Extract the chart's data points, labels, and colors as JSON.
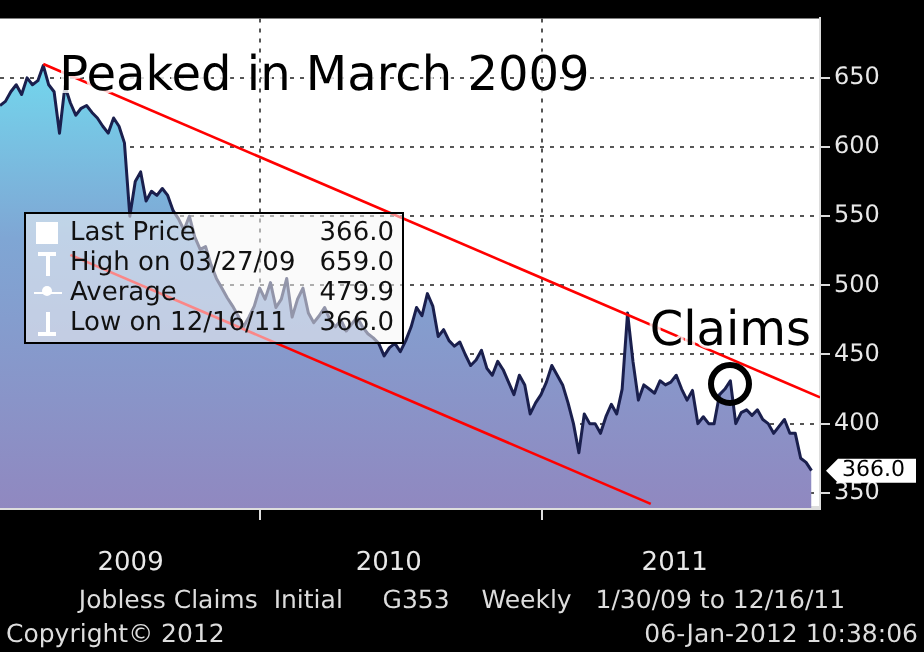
{
  "chart_data": {
    "type": "area",
    "annotations": [
      {
        "text": "Peaked in March 2009",
        "x": "2009-03-27",
        "y": 659
      },
      {
        "text": "Claims",
        "x": "2011-09-02",
        "y": 431
      },
      "Last Price 366.0",
      "High on 03/27/09 659.0",
      "Average 479.9",
      "Low on 12/16/11 366.0",
      "Jobless Claims  Initial     G353    Weekly   1/30/09 to 12/16/11",
      "Copyright© 2012",
      "06-Jan-2012 10:38:06"
    ],
    "xlim": [
      "2009-01-30",
      "2011-12-27"
    ],
    "xticks": [
      {
        "value": "2009-07-18",
        "label": "2009"
      },
      {
        "value": "2010-01-01",
        "label": null
      },
      {
        "value": "2010-06-17",
        "label": "2010"
      },
      {
        "value": "2011-01-01",
        "label": null
      },
      {
        "value": "2011-06-22",
        "label": "2011"
      }
    ],
    "ylim": [
      339,
      693
    ],
    "yticks": [
      350,
      400,
      450,
      500,
      550,
      600,
      650
    ],
    "grid": true,
    "series": [
      {
        "color": "#1a1f4d",
        "x": [
          "2009-01-30",
          "2009-02-06",
          "2009-02-13",
          "2009-02-20",
          "2009-02-27",
          "2009-03-06",
          "2009-03-13",
          "2009-03-20",
          "2009-03-27",
          "2009-04-03",
          "2009-04-10",
          "2009-04-17",
          "2009-04-24",
          "2009-05-01",
          "2009-05-08",
          "2009-05-15",
          "2009-05-22",
          "2009-05-29",
          "2009-06-05",
          "2009-06-12",
          "2009-06-19",
          "2009-06-26",
          "2009-07-03",
          "2009-07-10",
          "2009-07-17",
          "2009-07-24",
          "2009-07-31",
          "2009-08-07",
          "2009-08-14",
          "2009-08-21",
          "2009-08-28",
          "2009-09-04",
          "2009-09-11",
          "2009-09-18",
          "2009-09-25",
          "2009-10-02",
          "2009-10-09",
          "2009-10-16",
          "2009-10-23",
          "2009-10-30",
          "2009-11-06",
          "2009-11-13",
          "2009-11-20",
          "2009-11-27",
          "2009-12-04",
          "2009-12-11",
          "2009-12-18",
          "2009-12-25",
          "2010-01-01",
          "2010-01-08",
          "2010-01-15",
          "2010-01-22",
          "2010-01-29",
          "2010-02-05",
          "2010-02-12",
          "2010-02-19",
          "2010-02-26",
          "2010-03-05",
          "2010-03-12",
          "2010-03-19",
          "2010-03-26",
          "2010-04-02",
          "2010-04-09",
          "2010-04-16",
          "2010-04-23",
          "2010-04-30",
          "2010-05-07",
          "2010-05-14",
          "2010-05-21",
          "2010-05-28",
          "2010-06-04",
          "2010-06-11",
          "2010-06-18",
          "2010-06-25",
          "2010-07-02",
          "2010-07-09",
          "2010-07-16",
          "2010-07-23",
          "2010-07-30",
          "2010-08-06",
          "2010-08-13",
          "2010-08-20",
          "2010-08-27",
          "2010-09-03",
          "2010-09-10",
          "2010-09-17",
          "2010-09-24",
          "2010-10-01",
          "2010-10-08",
          "2010-10-15",
          "2010-10-22",
          "2010-10-29",
          "2010-11-05",
          "2010-11-12",
          "2010-11-19",
          "2010-11-26",
          "2010-12-03",
          "2010-12-10",
          "2010-12-17",
          "2010-12-24",
          "2010-12-31",
          "2011-01-07",
          "2011-01-14",
          "2011-01-21",
          "2011-01-28",
          "2011-02-04",
          "2011-02-11",
          "2011-02-18",
          "2011-02-25",
          "2011-03-04",
          "2011-03-11",
          "2011-03-18",
          "2011-03-25",
          "2011-04-01",
          "2011-04-08",
          "2011-04-15",
          "2011-04-22",
          "2011-04-29",
          "2011-05-06",
          "2011-05-13",
          "2011-05-20",
          "2011-05-27",
          "2011-06-03",
          "2011-06-10",
          "2011-06-17",
          "2011-06-24",
          "2011-07-01",
          "2011-07-08",
          "2011-07-15",
          "2011-07-22",
          "2011-07-29",
          "2011-08-05",
          "2011-08-12",
          "2011-08-19",
          "2011-08-26",
          "2011-09-02",
          "2011-09-09",
          "2011-09-16",
          "2011-09-23",
          "2011-09-30",
          "2011-10-07",
          "2011-10-14",
          "2011-10-21",
          "2011-10-28",
          "2011-11-04",
          "2011-11-11",
          "2011-11-18",
          "2011-11-25",
          "2011-12-02",
          "2011-12-09",
          "2011-12-16"
        ],
        "values": [
          630,
          633,
          640,
          645,
          638,
          650,
          645,
          648,
          659,
          645,
          640,
          610,
          644,
          632,
          623,
          628,
          630,
          625,
          621,
          615,
          610,
          621,
          615,
          603,
          550,
          575,
          582,
          561,
          568,
          565,
          570,
          565,
          554,
          548,
          540,
          550,
          535,
          526,
          528,
          515,
          505,
          498,
          491,
          485,
          478,
          470,
          477,
          485,
          498,
          490,
          502,
          484,
          490,
          505,
          477,
          490,
          498,
          480,
          473,
          478,
          484,
          475,
          470,
          475,
          467,
          472,
          477,
          470,
          465,
          462,
          458,
          449,
          455,
          458,
          452,
          460,
          470,
          484,
          478,
          494,
          485,
          463,
          468,
          460,
          456,
          459,
          450,
          442,
          446,
          453,
          440,
          435,
          445,
          439,
          430,
          421,
          435,
          428,
          407,
          415,
          421,
          430,
          442,
          435,
          428,
          415,
          400,
          379,
          407,
          400,
          400,
          393,
          405,
          414,
          407,
          425,
          480,
          445,
          417,
          428,
          425,
          422,
          431,
          428,
          430,
          435,
          425,
          417,
          424,
          400,
          405,
          400,
          400,
          421,
          425,
          431,
          400,
          408,
          410,
          406,
          410,
          403,
          400,
          393,
          398,
          403,
          393,
          393,
          375,
          372,
          366
        ],
        "value_labels": [
          null,
          null,
          null,
          null,
          null,
          null,
          null,
          null,
          null,
          null,
          null,
          null,
          null,
          null,
          null,
          null,
          null,
          null,
          null,
          null,
          null,
          null,
          null,
          null,
          null,
          null,
          null,
          null,
          null,
          null,
          null,
          null,
          null,
          null,
          null,
          null,
          null,
          null,
          null,
          null,
          null,
          null,
          null,
          null,
          null,
          null,
          null,
          null,
          null,
          null,
          null,
          null,
          null,
          null,
          null,
          null,
          null,
          null,
          null,
          null,
          null,
          null,
          null,
          null,
          null,
          null,
          null,
          null,
          null,
          null,
          null,
          null,
          null,
          null,
          null,
          null,
          null,
          null,
          null,
          null,
          null,
          null,
          null,
          null,
          null,
          null,
          null,
          null,
          null,
          null,
          null,
          null,
          null,
          null,
          null,
          null,
          null,
          null,
          null,
          null,
          null,
          null,
          null,
          null,
          null,
          null,
          null,
          null,
          null,
          null,
          null,
          null,
          null,
          null,
          null,
          null,
          null,
          null,
          null,
          null,
          null,
          null,
          null,
          null,
          null,
          null,
          null,
          null,
          null,
          null,
          null,
          null,
          null,
          null,
          null,
          null,
          null,
          null,
          null,
          null,
          null,
          null,
          null,
          null,
          null,
          null,
          null,
          null,
          null,
          null,
          "366.0"
        ]
      },
      {
        "type": "line",
        "color": "#ff0000",
        "x": [
          "2009-03-27",
          "2011-12-27"
        ],
        "values": [
          660,
          419
        ]
      },
      {
        "type": "line",
        "color": "#ff0000",
        "x": [
          "2009-05-01",
          "2011-05-22"
        ],
        "values": [
          522,
          342
        ]
      }
    ]
  }
}
